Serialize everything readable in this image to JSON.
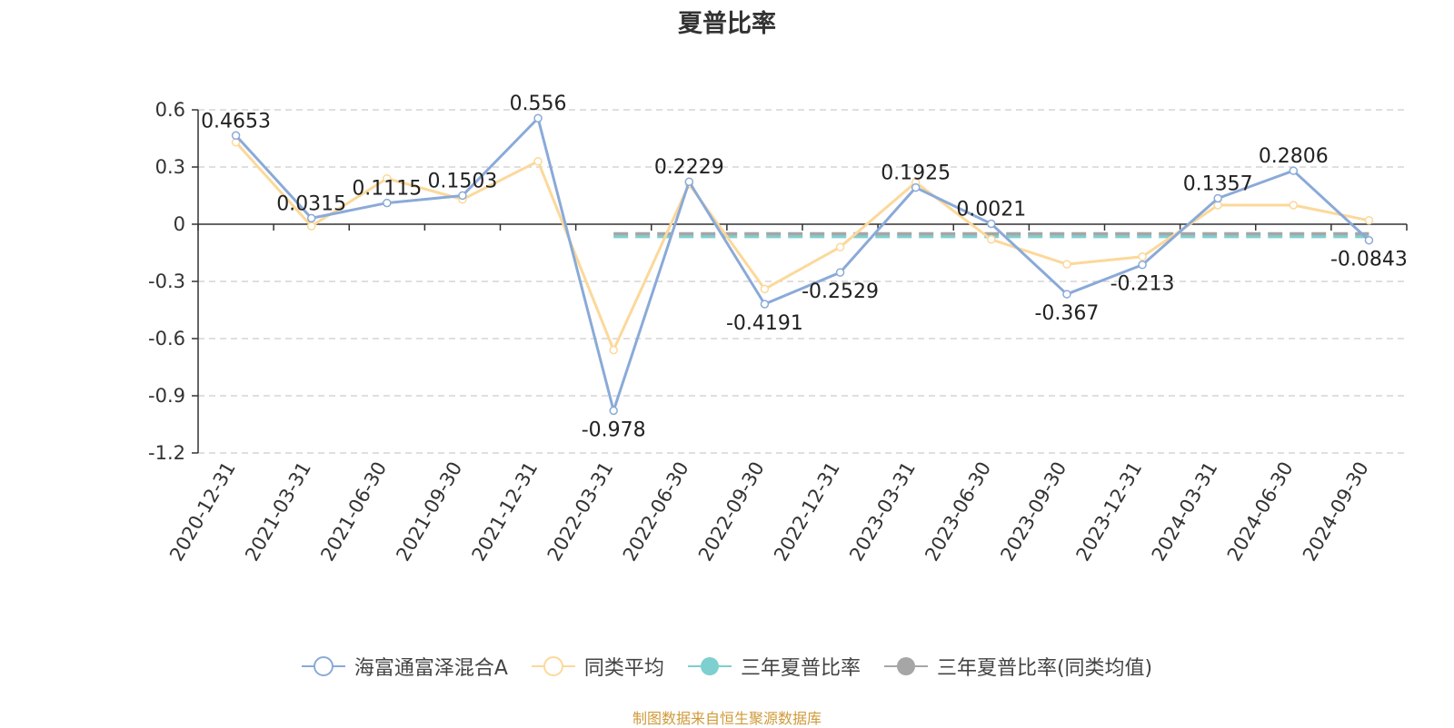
{
  "title": "夏普比率",
  "source_note": "制图数据来自恒生聚源数据库",
  "colors": {
    "fund": "#8aaad8",
    "peer": "#fcd89a",
    "three_year": "#7ecfcf",
    "three_year_peer": "#a6a6a6",
    "axis": "#333333",
    "grid": "#cccccc"
  },
  "legend": [
    {
      "label": "海富通富泽混合A",
      "color": "#8aaad8",
      "marker": "hollow-circle"
    },
    {
      "label": "同类平均",
      "color": "#fcd89a",
      "marker": "hollow-circle"
    },
    {
      "label": "三年夏普比率",
      "color": "#7ecfcf",
      "marker": "filled-circle"
    },
    {
      "label": "三年夏普比率(同类均值)",
      "color": "#a6a6a6",
      "marker": "filled-circle"
    }
  ],
  "chart_data": {
    "type": "line",
    "title": "夏普比率",
    "categories": [
      "2020-12-31",
      "2021-03-31",
      "2021-06-30",
      "2021-09-30",
      "2021-12-31",
      "2022-03-31",
      "2022-06-30",
      "2022-09-30",
      "2022-12-31",
      "2023-03-31",
      "2023-06-30",
      "2023-09-30",
      "2023-12-31",
      "2024-03-31",
      "2024-06-30",
      "2024-09-30"
    ],
    "ylim": [
      -1.2,
      0.6
    ],
    "yticks": [
      "0.6",
      "0.3",
      "0",
      "-0.3",
      "-0.6",
      "-0.9",
      "-1.2"
    ],
    "grid": true,
    "legend_position": "bottom",
    "series": [
      {
        "name": "海富通富泽混合A",
        "values": [
          0.4653,
          0.0315,
          0.1115,
          0.1503,
          0.556,
          -0.978,
          0.2229,
          -0.4191,
          -0.2529,
          0.1925,
          0.0021,
          -0.367,
          -0.213,
          0.1357,
          0.2806,
          -0.0843
        ],
        "labels": [
          "0.4653",
          "0.0315",
          "0.1115",
          "0.1503",
          "0.556",
          "-0.978",
          "0.2229",
          "-0.4191",
          "-0.2529",
          "0.1925",
          "0.0021",
          "-0.367",
          "-0.213",
          "0.1357",
          "0.2806",
          "-0.0843"
        ]
      },
      {
        "name": "同类平均",
        "values": [
          0.43,
          -0.01,
          0.24,
          0.13,
          0.33,
          -0.66,
          0.21,
          -0.34,
          -0.12,
          0.22,
          -0.08,
          -0.21,
          -0.17,
          0.1,
          0.1,
          0.02
        ]
      },
      {
        "name": "三年夏普比率",
        "values": [
          null,
          null,
          null,
          null,
          null,
          -0.065,
          -0.065,
          -0.065,
          -0.065,
          -0.065,
          -0.065,
          -0.065,
          -0.065,
          -0.065,
          -0.065,
          -0.065
        ]
      },
      {
        "name": "三年夏普比率(同类均值)",
        "values": [
          null,
          null,
          null,
          null,
          null,
          -0.05,
          -0.05,
          -0.05,
          -0.05,
          -0.05,
          -0.05,
          -0.05,
          -0.05,
          -0.05,
          -0.05,
          -0.05
        ]
      }
    ]
  }
}
